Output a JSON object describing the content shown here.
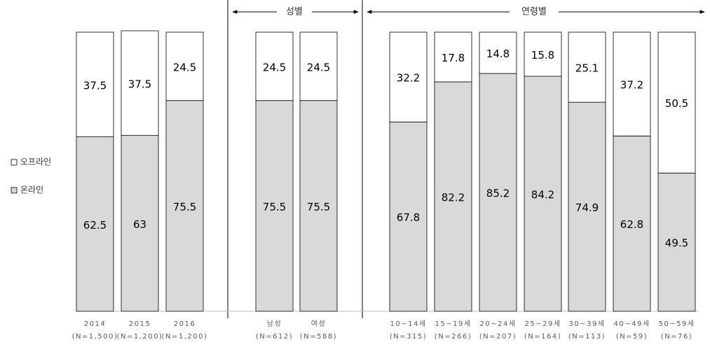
{
  "chart_data": {
    "type": "stacked_bar",
    "categories": [
      "2014",
      "2015",
      "2016",
      "남성",
      "여성",
      "10~14세",
      "15~19세",
      "20~24세",
      "25~29세",
      "30~39세",
      "40~49세",
      "50~59세"
    ],
    "sample_sizes": [
      "(N=1,500)",
      "(N=1,200)",
      "(N=1,200)",
      "(N=612)",
      "(N=588)",
      "(N=315)",
      "(N=266)",
      "(N=207)",
      "(N=164)",
      "(N=113)",
      "(N=59)",
      "(N=76)"
    ],
    "group_labels": [
      "성별",
      "연령별"
    ],
    "series": [
      {
        "name": "온라인",
        "color": "#d9d9d9",
        "values": [
          62.5,
          63,
          75.5,
          75.5,
          75.5,
          67.8,
          82.2,
          85.2,
          84.2,
          74.9,
          62.8,
          49.5
        ]
      },
      {
        "name": "오프라인",
        "color": "#ffffff",
        "values": [
          37.5,
          37.5,
          24.5,
          24.5,
          24.5,
          32.2,
          17.8,
          14.8,
          15.8,
          25.1,
          37.2,
          50.5
        ]
      }
    ],
    "ylim": [
      0,
      100
    ]
  }
}
